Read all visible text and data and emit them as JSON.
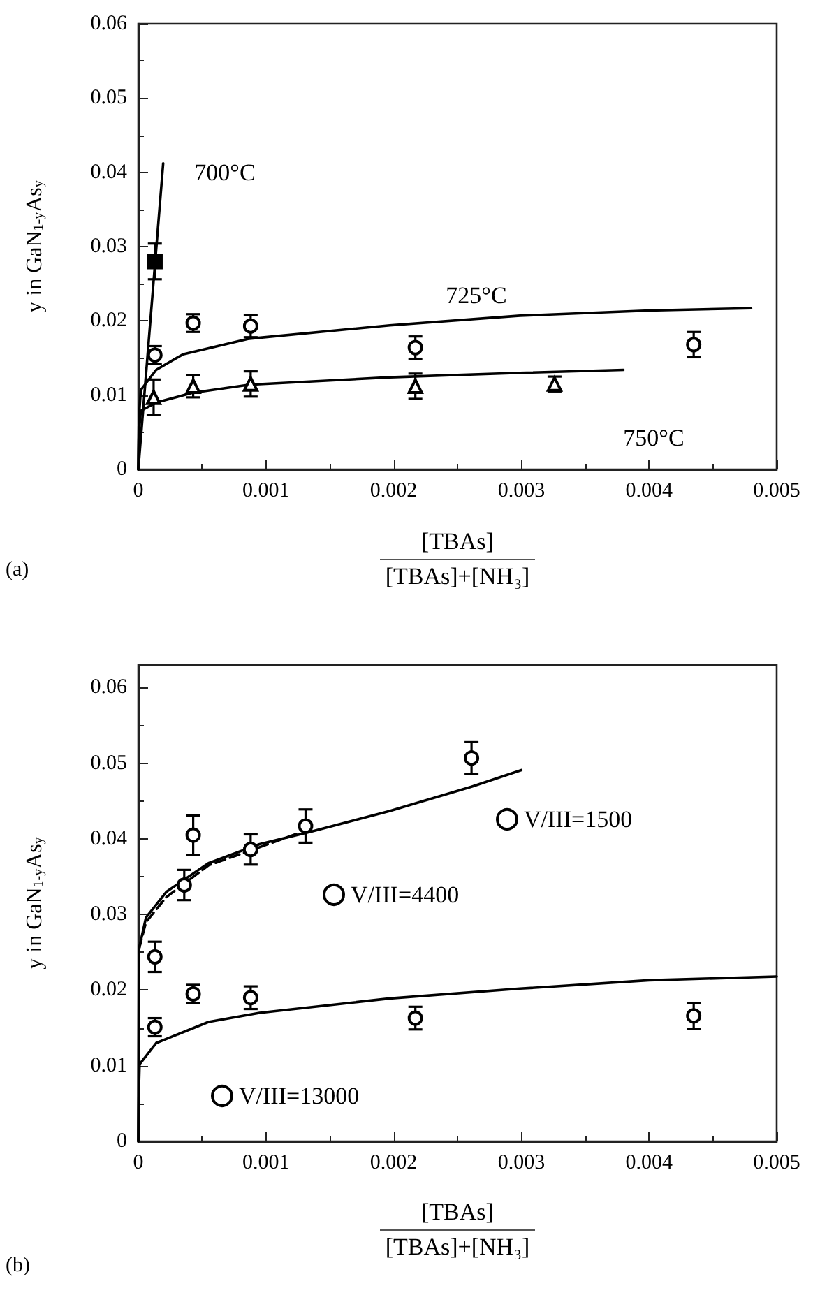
{
  "chart_data": [
    {
      "type": "scatter",
      "xlabel": "[TBAs]\n[TBAs]+[NH₃]",
      "ylabel": "y in GaN$_{1-y}$As$_{y}$",
      "xlim": [
        0,
        0.005
      ],
      "xticks": [
        0,
        0.001,
        0.002,
        0.003,
        0.004,
        0.005
      ],
      "ylim": [
        0,
        0.06
      ],
      "yticks": [
        0,
        0.01,
        0.02,
        0.03,
        0.04,
        0.05,
        0.06
      ],
      "annotations": [
        "(a)",
        "700°C",
        "725°C",
        "750°C"
      ],
      "series": [
        {
          "marker": "square",
          "color": "#000000",
          "x": [
            0.00013
          ],
          "values": [
            0.028
          ],
          "errors": [
            0.0024
          ]
        },
        {
          "marker": "circle",
          "color": "#000000",
          "x": [
            0.00013,
            0.00043,
            0.00088,
            0.00217,
            0.00435
          ],
          "values": [
            0.0154,
            0.0197,
            0.0193,
            0.0164,
            0.0168
          ],
          "errors": [
            0.0012,
            0.0012,
            0.0015,
            0.0015,
            0.0017
          ]
        },
        {
          "marker": "triangle",
          "color": "#000000",
          "x": [
            0.00012,
            0.00043,
            0.00088,
            0.00217,
            0.00326
          ],
          "values": [
            0.0097,
            0.0112,
            0.0115,
            0.0112,
            0.0115
          ],
          "errors": [
            0.0024,
            0.0015,
            0.0017,
            0.0017,
            0.001
          ]
        },
        {
          "type": "line",
          "line_style": "solid",
          "color": "#000000",
          "x": [
            0,
            0.000195
          ],
          "values": [
            0,
            0.0412
          ]
        },
        {
          "type": "line",
          "line_style": "solid",
          "color": "#000000",
          "x": [
            0,
            5e-06,
            2e-05,
            0.00014,
            0.00035,
            0.00087,
            0.00197,
            0.00299,
            0.004,
            0.0048
          ],
          "values": [
            0,
            0.007,
            0.0107,
            0.0134,
            0.0155,
            0.0176,
            0.0194,
            0.0207,
            0.0214,
            0.0217
          ]
        },
        {
          "type": "line",
          "line_style": "solid",
          "color": "#000000",
          "x": [
            0,
            5e-06,
            2e-05,
            0.00014,
            0.00042,
            0.00087,
            0.00197,
            0.00299,
            0.0038
          ],
          "values": [
            0,
            0.005,
            0.0079,
            0.009,
            0.0103,
            0.0114,
            0.0124,
            0.013,
            0.0134
          ]
        }
      ]
    },
    {
      "type": "scatter",
      "xlabel": "[TBAs]\n[TBAs]+[NH₃]",
      "ylabel": "y in GaN$_{1-y}$As$_{y}$",
      "xlim": [
        0,
        0.005
      ],
      "xticks": [
        0,
        0.001,
        0.002,
        0.003,
        0.004,
        0.005
      ],
      "ylim": [
        0,
        0.063
      ],
      "yticks": [
        0,
        0.01,
        0.02,
        0.03,
        0.04,
        0.05,
        0.06
      ],
      "legend": "bottom left",
      "annotations": [
        "(b)"
      ],
      "series": [
        {
          "name": "V/III=1500",
          "marker": "circle",
          "color": "#000000",
          "x": [
            0.00036,
            0.00131,
            0.00261
          ],
          "values": [
            0.0339,
            0.0417,
            0.0507
          ],
          "errors": [
            0.002,
            0.0022,
            0.0021
          ]
        },
        {
          "type": "line",
          "line_style": "solid",
          "color": "#000000",
          "x": [
            0,
            5e-06,
            6e-05,
            0.00022,
            0.00055,
            0.00095,
            0.00136,
            0.00197,
            0.00261,
            0.003
          ],
          "values": [
            0,
            0.0254,
            0.0296,
            0.033,
            0.0368,
            0.0393,
            0.041,
            0.0437,
            0.0469,
            0.0491
          ]
        },
        {
          "name": "V/III=4400",
          "marker": "circle",
          "color": "#000000",
          "x": [
            0.00013,
            0.00043,
            0.00088
          ],
          "values": [
            0.0244,
            0.0405,
            0.0386
          ],
          "errors": [
            0.002,
            0.0026,
            0.002
          ]
        },
        {
          "type": "line",
          "line_style": "dashed",
          "color": "#000000",
          "x": [
            5e-06,
            6e-05,
            0.00022,
            0.00055,
            0.00095,
            0.00126
          ],
          "values": [
            0.0254,
            0.029,
            0.0323,
            0.0365,
            0.0389,
            0.0408
          ]
        },
        {
          "name": "V/III=13000",
          "marker": "circle",
          "color": "#000000",
          "x": [
            0.00013,
            0.00043,
            0.00088,
            0.00217,
            0.00435
          ],
          "values": [
            0.0151,
            0.0195,
            0.019,
            0.0163,
            0.0166
          ],
          "errors": [
            0.0012,
            0.0012,
            0.0015,
            0.0015,
            0.0017
          ]
        },
        {
          "type": "line",
          "line_style": "solid",
          "color": "#000000",
          "x": [
            0,
            5e-06,
            1e-05,
            0.00014,
            0.00055,
            0.00095,
            0.00197,
            0.00299,
            0.004,
            0.005
          ],
          "values": [
            0,
            0.007,
            0.0102,
            0.013,
            0.0158,
            0.017,
            0.0189,
            0.0202,
            0.0213,
            0.0218
          ]
        }
      ]
    }
  ]
}
